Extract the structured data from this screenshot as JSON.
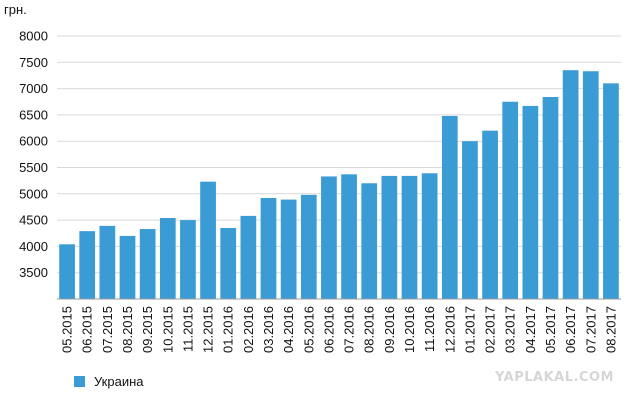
{
  "chart_data": {
    "type": "bar",
    "ylabel": "грн.",
    "ylim": [
      3000,
      8000
    ],
    "yticks": [
      3500,
      4000,
      4500,
      5000,
      5500,
      6000,
      6500,
      7000,
      7500,
      8000
    ],
    "grid": true,
    "legend_position": "bottom-left",
    "categories": [
      "05.2015",
      "06.2015",
      "07.2015",
      "08.2015",
      "09.2015",
      "10.2015",
      "11.2015",
      "12.2015",
      "01.2016",
      "02.2016",
      "03.2016",
      "04.2016",
      "05.2016",
      "06.2016",
      "07.2016",
      "08.2016",
      "09.2016",
      "10.2016",
      "11.2016",
      "12.2016",
      "01.2017",
      "02.2017",
      "03.2017",
      "04.2017",
      "05.2017",
      "06.2017",
      "07.2017",
      "08.2017"
    ],
    "series": [
      {
        "name": "Украина",
        "color": "#3a9bd5",
        "values": [
          4040,
          4290,
          4390,
          4200,
          4330,
          4540,
          4500,
          5230,
          4350,
          4580,
          4920,
          4890,
          4980,
          5330,
          5370,
          5200,
          5340,
          5340,
          5390,
          6480,
          6000,
          6200,
          6750,
          6670,
          6840,
          7350,
          7330,
          7100
        ]
      }
    ]
  },
  "watermark": "YAPLAKAL.COM"
}
